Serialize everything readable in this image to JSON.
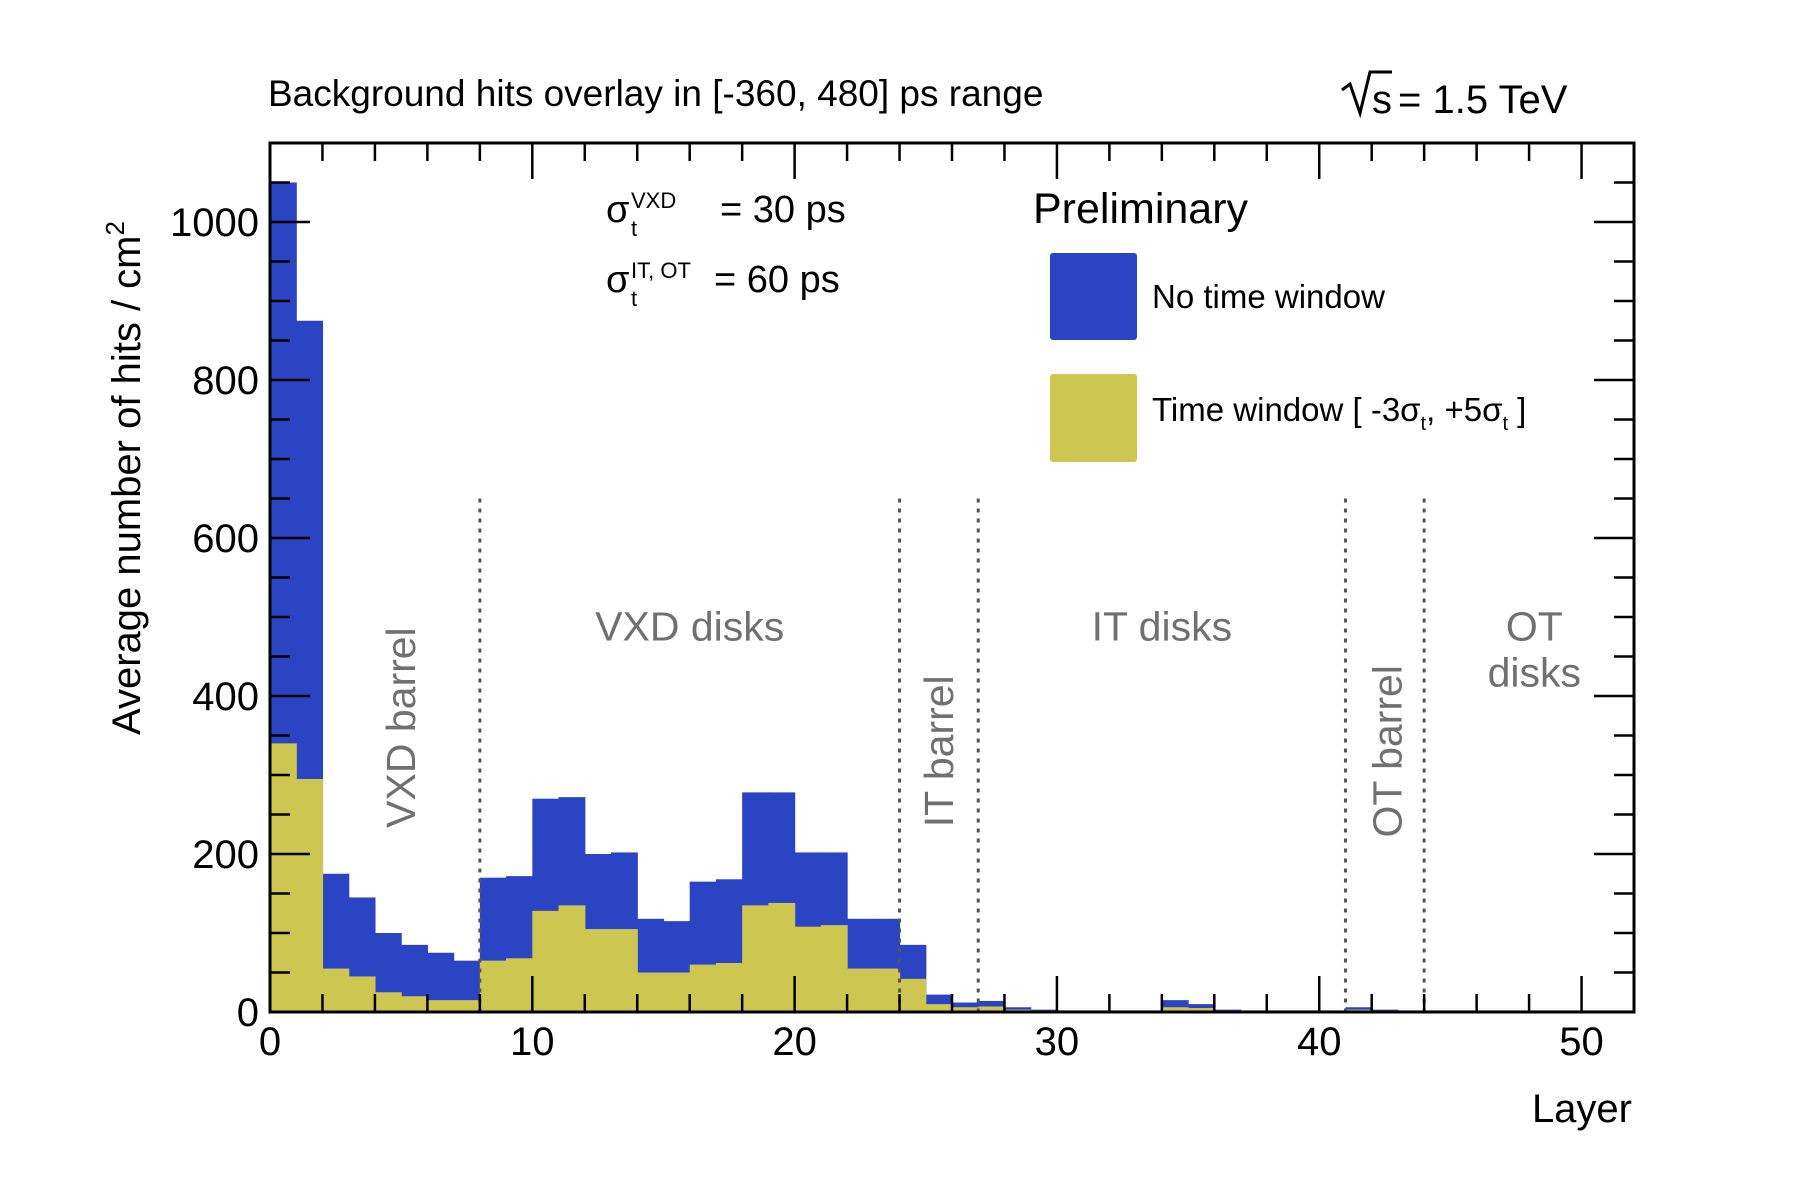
{
  "chart_data": {
    "type": "bar",
    "title": "Background hits overlay in [-360, 480] ps range",
    "energy_label": {
      "root": "s",
      "value": "= 1.5 TeV"
    },
    "preliminary": "Preliminary",
    "xlabel": "Layer",
    "ylabel": "Average number of hits / cm",
    "ylabel_sup": "2",
    "xlim": [
      0,
      52
    ],
    "ylim": [
      0,
      1100
    ],
    "x_ticks": [
      0,
      10,
      20,
      30,
      40,
      50
    ],
    "y_ticks": [
      0,
      200,
      400,
      600,
      800,
      1000
    ],
    "sigma_annotations": [
      {
        "symbol": "σ",
        "sub": "t",
        "sup": "VXD",
        "value": "= 30 ps"
      },
      {
        "symbol": "σ",
        "sub": "t",
        "sup": "IT, OT",
        "value": "= 60 ps"
      }
    ],
    "series": [
      {
        "name": "No time window",
        "color": "#2b44c4",
        "values": [
          1050,
          875,
          175,
          145,
          100,
          85,
          75,
          65,
          170,
          172,
          270,
          272,
          200,
          202,
          118,
          115,
          165,
          168,
          278,
          278,
          202,
          202,
          118,
          118,
          85,
          22,
          12,
          14,
          6,
          3,
          2,
          2,
          2,
          2,
          15,
          10,
          3,
          2,
          2,
          2,
          2,
          6,
          3,
          2,
          2,
          2,
          2,
          2,
          2,
          2,
          2,
          2
        ]
      },
      {
        "name": "Time window",
        "legend_tex": {
          "text": "Time window [ -3σ",
          "sub1": "t",
          "mid": ", +5σ",
          "sub2": "t",
          "end": " ]"
        },
        "color": "#cdc650",
        "values": [
          340,
          295,
          55,
          45,
          25,
          20,
          15,
          15,
          65,
          68,
          128,
          135,
          105,
          105,
          50,
          50,
          60,
          62,
          135,
          138,
          108,
          110,
          55,
          55,
          42,
          10,
          6,
          7,
          3,
          2,
          2,
          2,
          2,
          2,
          6,
          5,
          2,
          2,
          2,
          2,
          2,
          3,
          2,
          2,
          2,
          2,
          2,
          2,
          2,
          2,
          2,
          2
        ]
      }
    ],
    "region_dividers": [
      8,
      24,
      27,
      41,
      44
    ],
    "regions": [
      {
        "label": "VXD barrel",
        "x": 5,
        "y": 360,
        "rotated": true
      },
      {
        "label": "VXD disks",
        "x": 16,
        "y": 470,
        "rotated": false
      },
      {
        "label": "IT barrel",
        "x": 25.5,
        "y": 330,
        "rotated": true
      },
      {
        "label": "IT disks",
        "x": 34,
        "y": 470,
        "rotated": false
      },
      {
        "label": "OT barrel",
        "x": 42.6,
        "y": 330,
        "rotated": true
      },
      {
        "label": "OT\ndisks",
        "x": 48.2,
        "y": 470,
        "rotated": false
      }
    ],
    "grid": false,
    "legend_position": "top-right"
  }
}
